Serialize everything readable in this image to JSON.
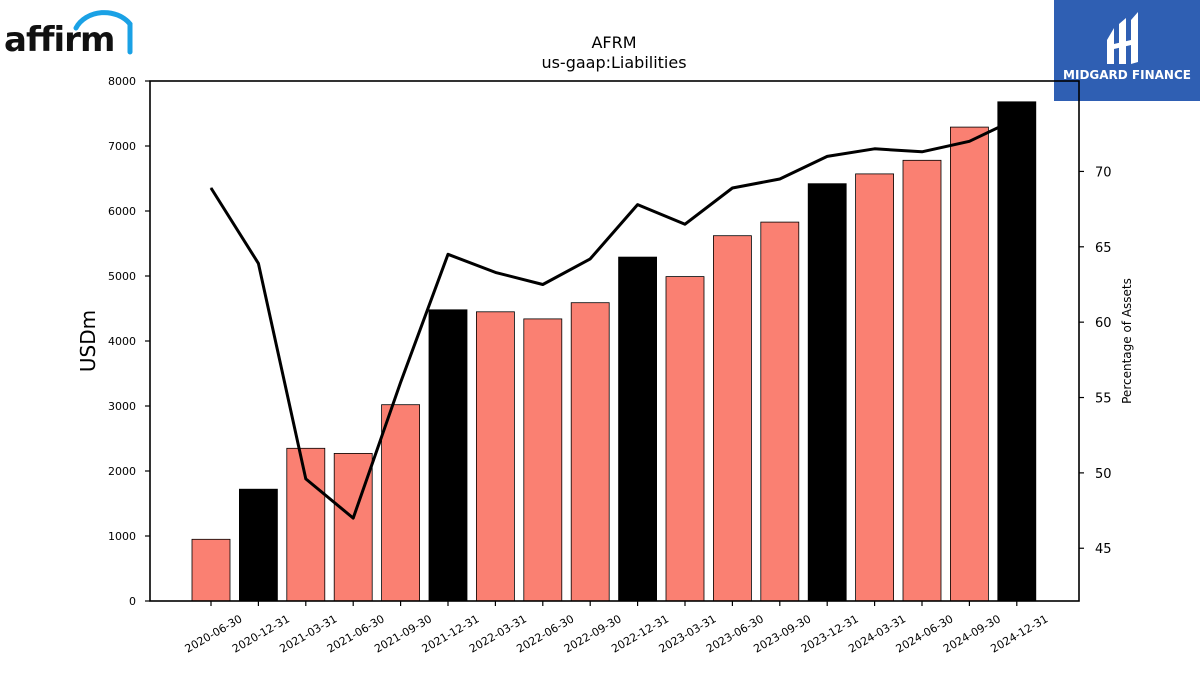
{
  "logos": {
    "left_text": "affirm",
    "right_text": "MIDGARD FINANCE"
  },
  "colors": {
    "bar_default": "#fa8072",
    "bar_highlight": "#000000",
    "line": "#000000",
    "logo_arc": "#1aa1e5",
    "logo_panel": "#2f5fb3"
  },
  "chart_data": {
    "type": "bar",
    "title": "AFRM",
    "subtitle": "us-gaap:Liabilities",
    "ylabel": "USDm",
    "y2label": "Percentage of Assets",
    "ylim": [
      0,
      8000
    ],
    "y2lim": [
      41.5,
      76
    ],
    "yticks": [
      0,
      1000,
      2000,
      3000,
      4000,
      5000,
      6000,
      7000,
      8000
    ],
    "y2ticks": [
      45,
      50,
      55,
      60,
      65,
      70
    ],
    "grid": false,
    "categories": [
      "2020-06-30",
      "2020-12-31",
      "2021-03-31",
      "2021-06-30",
      "2021-09-30",
      "2021-12-31",
      "2022-03-31",
      "2022-06-30",
      "2022-09-30",
      "2022-12-31",
      "2023-03-31",
      "2023-06-30",
      "2023-09-30",
      "2023-12-31",
      "2024-03-31",
      "2024-06-30",
      "2024-09-30",
      "2024-12-31"
    ],
    "series": [
      {
        "kind": "bar",
        "axis": "left",
        "values": [
          950,
          1720,
          2350,
          2270,
          3020,
          4480,
          4450,
          4340,
          4590,
          5290,
          4990,
          5620,
          5830,
          6420,
          6570,
          6780,
          7290,
          7680
        ],
        "highlight": [
          false,
          true,
          false,
          false,
          false,
          true,
          false,
          false,
          false,
          true,
          false,
          false,
          false,
          true,
          false,
          false,
          false,
          true
        ]
      },
      {
        "kind": "line",
        "axis": "right",
        "values": [
          68.9,
          63.9,
          49.6,
          47.0,
          56.0,
          64.5,
          63.3,
          62.5,
          64.2,
          67.8,
          66.5,
          68.9,
          69.5,
          71.0,
          71.5,
          71.3,
          72.0,
          73.5
        ]
      }
    ]
  }
}
